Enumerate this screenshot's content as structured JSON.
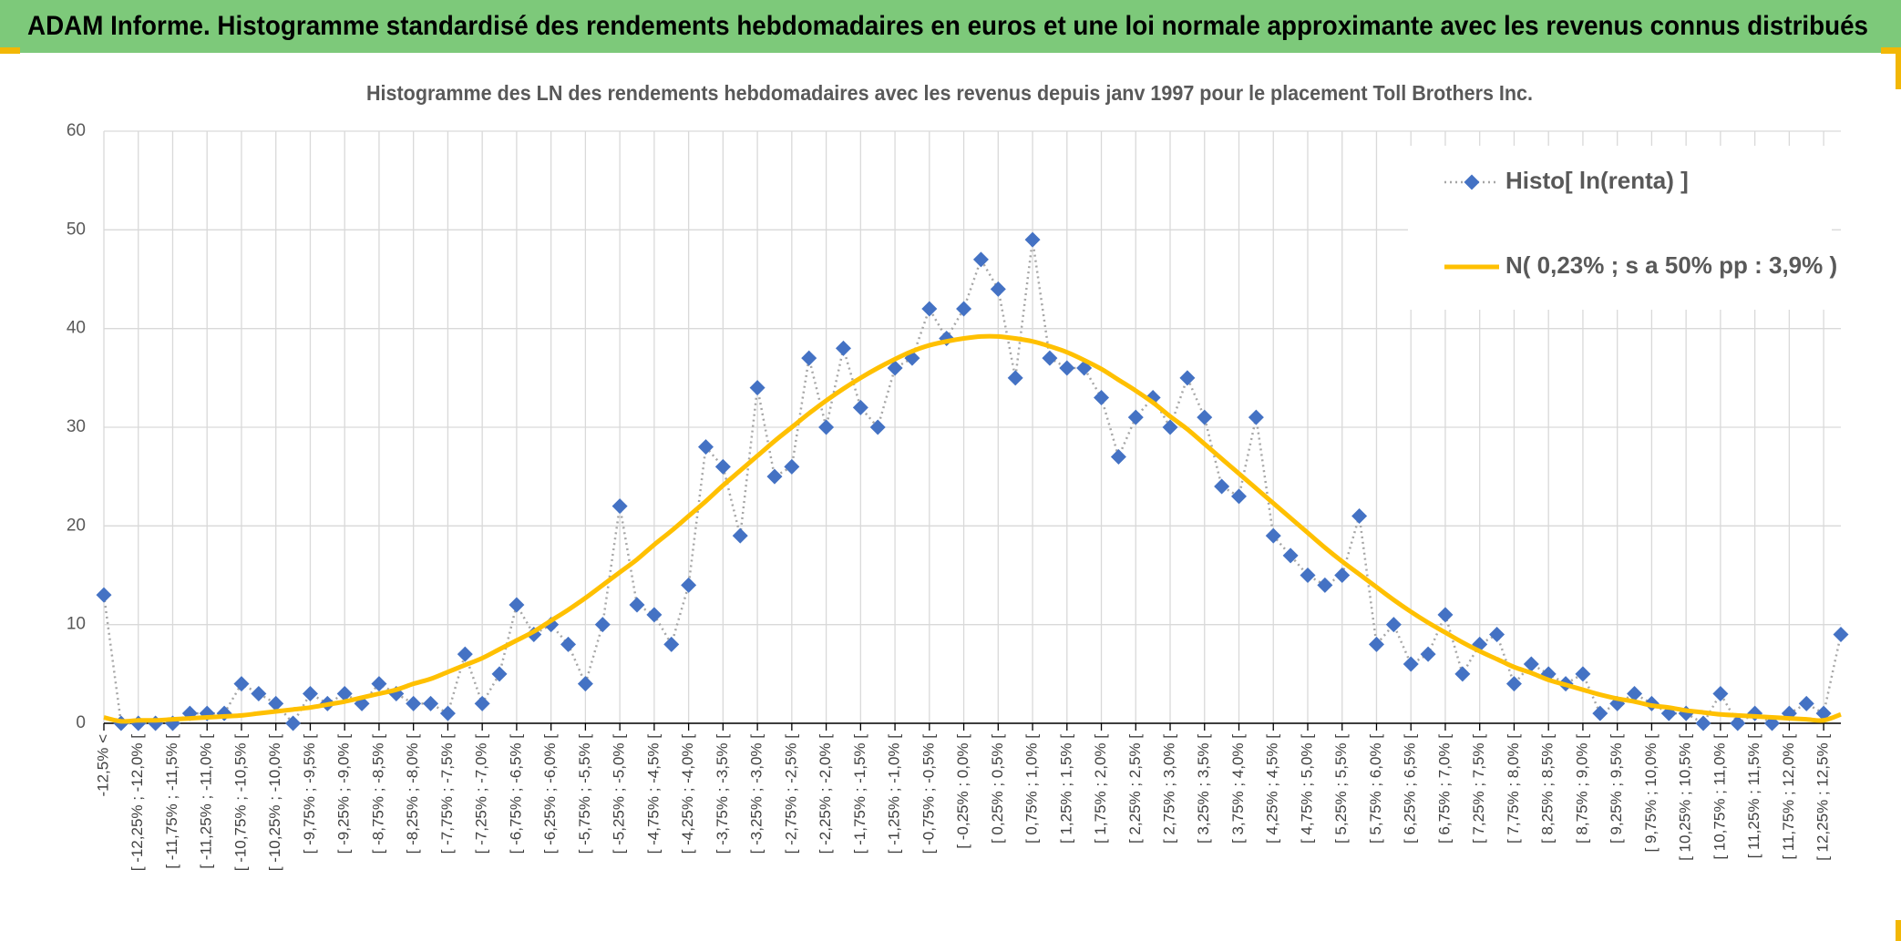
{
  "header": {
    "title": "ADAM Informe. Histogramme standardisé des rendements hebdomadaires en euros et une loi normale approximante avec les revenus connus distribués"
  },
  "chart_data": {
    "type": "line",
    "title": "Histogramme des LN des rendements hebdomadaires avec les revenus depuis janv 1997 pour le placement Toll Brothers Inc.",
    "categories": [
      "-12,5% <",
      null,
      "[ -12,25% ; -12,0% [",
      null,
      "[ -11,75% ; -11,5% [",
      null,
      "[ -11,25% ; -11,0% [",
      null,
      "[ -10,75% ; -10,5% [",
      null,
      "[ -10,25% ; -10,0% [",
      null,
      "[ -9,75% ; -9,5% [",
      null,
      "[ -9,25% ; -9,0% [",
      null,
      "[ -8,75% ; -8,5% [",
      null,
      "[ -8,25% ; -8,0% [",
      null,
      "[ -7,75% ; -7,5% [",
      null,
      "[ -7,25% ; -7,0% [",
      null,
      "[ -6,75% ; -6,5% [",
      null,
      "[ -6,25% ; -6,0% [",
      null,
      "[ -5,75% ; -5,5% [",
      null,
      "[ -5,25% ; -5,0% [",
      null,
      "[ -4,75% ; -4,5% [",
      null,
      "[ -4,25% ; -4,0% [",
      null,
      "[ -3,75% ; -3,5% [",
      null,
      "[ -3,25% ; -3,0% [",
      null,
      "[ -2,75% ; -2,5% [",
      null,
      "[ -2,25% ; -2,0% [",
      null,
      "[ -1,75% ; -1,5% [",
      null,
      "[ -1,25% ; -1,0% [",
      null,
      "[ -0,75% ; -0,5% [",
      null,
      "[ -0,25% ; 0,0% [",
      null,
      "[ 0,25% ; 0,5% [",
      null,
      "[ 0,75% ; 1,0% [",
      null,
      "[ 1,25% ; 1,5% [",
      null,
      "[ 1,75% ; 2,0% [",
      null,
      "[ 2,25% ; 2,5% [",
      null,
      "[ 2,75% ; 3,0% [",
      null,
      "[ 3,25% ; 3,5% [",
      null,
      "[ 3,75% ; 4,0% [",
      null,
      "[ 4,25% ; 4,5% [",
      null,
      "[ 4,75% ; 5,0% [",
      null,
      "[ 5,25% ; 5,5% [",
      null,
      "[ 5,75% ; 6,0% [",
      null,
      "[ 6,25% ; 6,5% [",
      null,
      "[ 6,75% ; 7,0% [",
      null,
      "[ 7,25% ; 7,5% [",
      null,
      "[ 7,75% ; 8,0% [",
      null,
      "[ 8,25% ; 8,5% [",
      null,
      "[ 8,75% ; 9,0% [",
      null,
      "[ 9,25% ; 9,5% [",
      null,
      "[ 9,75% ; 10,0% [",
      null,
      "[ 10,25% ; 10,5% [",
      null,
      "[ 10,75% ; 11,0% [",
      null,
      "[ 11,25% ; 11,5% [",
      null,
      "[ 11,75% ; 12,0% [",
      null,
      "[ 12,25% ; 12,5% [",
      null
    ],
    "series": [
      {
        "name": "Histo[ ln(renta) ]",
        "color": "#4472c4",
        "line_color": "#a6a6a6",
        "values": [
          13,
          0,
          0,
          0,
          0,
          1,
          1,
          1,
          4,
          3,
          2,
          0,
          3,
          2,
          3,
          2,
          4,
          3,
          2,
          2,
          1,
          7,
          2,
          5,
          12,
          9,
          10,
          8,
          4,
          10,
          22,
          12,
          11,
          8,
          14,
          28,
          26,
          19,
          34,
          25,
          26,
          37,
          30,
          38,
          32,
          30,
          36,
          37,
          42,
          39,
          42,
          47,
          44,
          35,
          49,
          37,
          36,
          36,
          33,
          27,
          31,
          33,
          30,
          35,
          31,
          24,
          23,
          31,
          19,
          17,
          15,
          14,
          15,
          21,
          8,
          10,
          6,
          7,
          11,
          5,
          8,
          9,
          4,
          6,
          5,
          4,
          5,
          1,
          2,
          3,
          2,
          1,
          1,
          0,
          3,
          0,
          1,
          0,
          1,
          2,
          1,
          9
        ]
      },
      {
        "name": "N( 0,23% ; s a 50% pp : 3,9% )",
        "color": "#ffc000",
        "values": [
          0.6,
          0.2,
          0.3,
          0.3,
          0.4,
          0.5,
          0.6,
          0.7,
          0.8,
          1.0,
          1.2,
          1.4,
          1.6,
          1.9,
          2.2,
          2.6,
          3.0,
          3.4,
          4.0,
          4.5,
          5.2,
          5.9,
          6.6,
          7.5,
          8.4,
          9.3,
          10.4,
          11.5,
          12.7,
          14.0,
          15.3,
          16.6,
          18.1,
          19.5,
          21.0,
          22.5,
          24.1,
          25.6,
          27.1,
          28.6,
          30.0,
          31.4,
          32.7,
          33.9,
          35.0,
          36.0,
          36.9,
          37.7,
          38.3,
          38.7,
          39.0,
          39.2,
          39.2,
          39.0,
          38.7,
          38.2,
          37.6,
          36.8,
          35.9,
          34.8,
          33.7,
          32.5,
          31.1,
          29.8,
          28.3,
          26.8,
          25.3,
          23.8,
          22.3,
          20.8,
          19.3,
          17.8,
          16.4,
          15.1,
          13.8,
          12.5,
          11.3,
          10.2,
          9.2,
          8.2,
          7.3,
          6.5,
          5.7,
          5.1,
          4.4,
          3.9,
          3.4,
          2.9,
          2.5,
          2.2,
          1.8,
          1.6,
          1.3,
          1.1,
          0.9,
          0.8,
          0.7,
          0.6,
          0.5,
          0.4,
          0.3,
          0.9
        ]
      }
    ],
    "ylim": [
      0,
      60
    ],
    "yticks": [
      0,
      10,
      20,
      30,
      40,
      50,
      60
    ],
    "grid": true,
    "legend": "upper right"
  }
}
